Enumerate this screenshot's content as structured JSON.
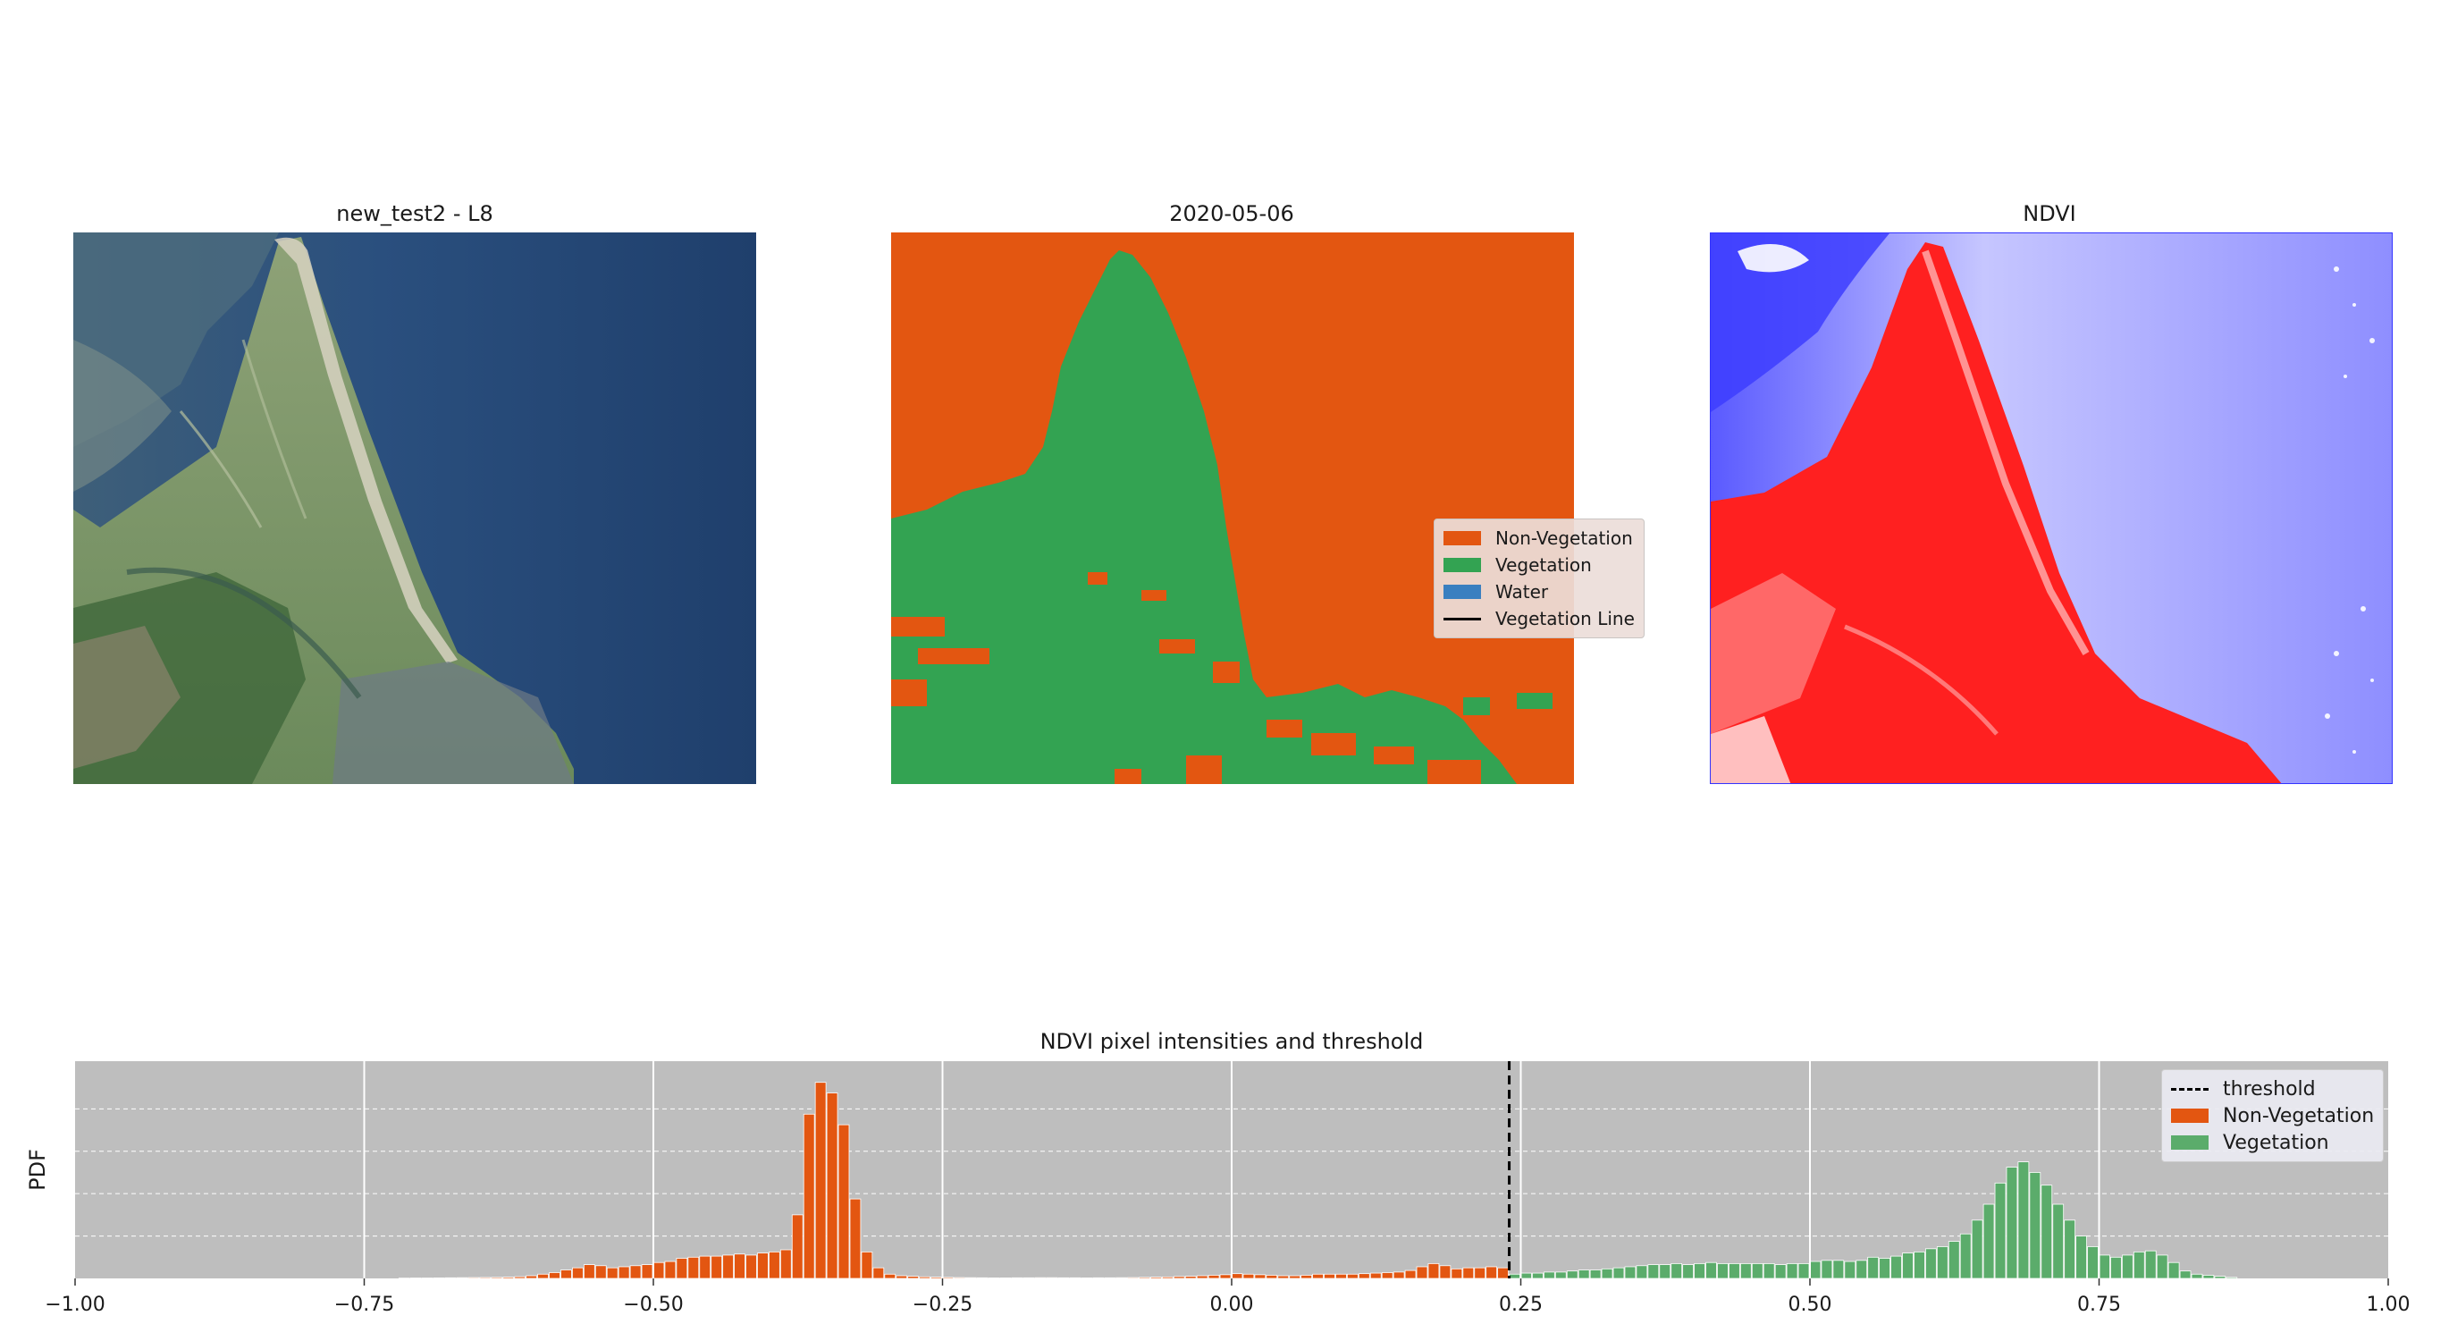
{
  "panels": {
    "rgb_title": "new_test2 - L8",
    "class_title": "2020-05-06",
    "ndvi_title": "NDVI"
  },
  "classification_legend": [
    {
      "label": "Non-Vegetation",
      "color": "#e35611"
    },
    {
      "label": "Vegetation",
      "color": "#33a352"
    },
    {
      "label": "Water",
      "color": "#3a7fc0"
    },
    {
      "label": "Vegetation Line",
      "color": "#000000"
    }
  ],
  "colors": {
    "non_vegetation": "#e35611",
    "vegetation": "#33a352",
    "sea": "#24487a",
    "ndvi_positive": "#ff0000",
    "ndvi_negative": "#3333ff",
    "hist_background": "#bebebe",
    "hist_vegetation": "#5bac6b"
  },
  "chart_data": {
    "type": "bar",
    "title": "NDVI pixel intensities and threshold",
    "xlabel": "",
    "ylabel": "PDF",
    "xlim": [
      -1.0,
      1.0
    ],
    "xticks": [
      "−1.00",
      "−0.75",
      "−0.50",
      "−0.25",
      "0.00",
      "0.25",
      "0.50",
      "0.75",
      "1.00"
    ],
    "threshold": 0.24,
    "grid": true,
    "legend_position": "top-right",
    "legend": [
      "threshold",
      "Non-Vegetation",
      "Vegetation"
    ],
    "bin_width": 0.01,
    "series": [
      {
        "name": "Non-Vegetation",
        "x": [
          -0.72,
          -0.71,
          -0.7,
          -0.69,
          -0.68,
          -0.67,
          -0.66,
          -0.65,
          -0.64,
          -0.63,
          -0.62,
          -0.61,
          -0.6,
          -0.59,
          -0.58,
          -0.57,
          -0.56,
          -0.55,
          -0.54,
          -0.53,
          -0.52,
          -0.51,
          -0.5,
          -0.49,
          -0.48,
          -0.47,
          -0.46,
          -0.45,
          -0.44,
          -0.43,
          -0.42,
          -0.41,
          -0.4,
          -0.39,
          -0.38,
          -0.37,
          -0.36,
          -0.35,
          -0.34,
          -0.33,
          -0.32,
          -0.31,
          -0.3,
          -0.29,
          -0.28,
          -0.27,
          -0.26,
          -0.25,
          -0.24,
          -0.23,
          -0.22,
          -0.21,
          -0.2,
          -0.19,
          -0.18,
          -0.17,
          -0.16,
          -0.15,
          -0.14,
          -0.13,
          -0.12,
          -0.11,
          -0.1,
          -0.09,
          -0.08,
          -0.07,
          -0.06,
          -0.05,
          -0.04,
          -0.03,
          -0.02,
          -0.01,
          0.0,
          0.01,
          0.02,
          0.03,
          0.04,
          0.05,
          0.06,
          0.07,
          0.08,
          0.09,
          0.1,
          0.11,
          0.12,
          0.13,
          0.14,
          0.15,
          0.16,
          0.17,
          0.18,
          0.19,
          0.2,
          0.21,
          0.22,
          0.23
        ],
        "values": [
          0.003,
          0.004,
          0.004,
          0.005,
          0.006,
          0.007,
          0.008,
          0.009,
          0.01,
          0.012,
          0.016,
          0.025,
          0.04,
          0.055,
          0.08,
          0.1,
          0.13,
          0.12,
          0.1,
          0.11,
          0.12,
          0.13,
          0.15,
          0.16,
          0.19,
          0.2,
          0.21,
          0.21,
          0.22,
          0.23,
          0.22,
          0.24,
          0.25,
          0.27,
          0.6,
          1.55,
          1.85,
          1.75,
          1.45,
          0.75,
          0.25,
          0.1,
          0.04,
          0.025,
          0.02,
          0.015,
          0.012,
          0.01,
          0.008,
          0.007,
          0.006,
          0.005,
          0.005,
          0.006,
          0.006,
          0.007,
          0.007,
          0.006,
          0.006,
          0.005,
          0.006,
          0.006,
          0.007,
          0.008,
          0.01,
          0.012,
          0.014,
          0.018,
          0.02,
          0.025,
          0.03,
          0.035,
          0.045,
          0.04,
          0.035,
          0.03,
          0.025,
          0.025,
          0.03,
          0.04,
          0.04,
          0.04,
          0.04,
          0.045,
          0.05,
          0.055,
          0.06,
          0.075,
          0.11,
          0.14,
          0.12,
          0.09,
          0.1,
          0.1,
          0.11,
          0.1
        ]
      },
      {
        "name": "Vegetation",
        "x": [
          0.24,
          0.25,
          0.26,
          0.27,
          0.28,
          0.29,
          0.3,
          0.31,
          0.32,
          0.33,
          0.34,
          0.35,
          0.36,
          0.37,
          0.38,
          0.39,
          0.4,
          0.41,
          0.42,
          0.43,
          0.44,
          0.45,
          0.46,
          0.47,
          0.48,
          0.49,
          0.5,
          0.51,
          0.52,
          0.53,
          0.54,
          0.55,
          0.56,
          0.57,
          0.58,
          0.59,
          0.6,
          0.61,
          0.62,
          0.63,
          0.64,
          0.65,
          0.66,
          0.67,
          0.68,
          0.69,
          0.7,
          0.71,
          0.72,
          0.73,
          0.74,
          0.75,
          0.76,
          0.77,
          0.78,
          0.79,
          0.8,
          0.81,
          0.82,
          0.83,
          0.84,
          0.85,
          0.86
        ],
        "values": [
          0.04,
          0.05,
          0.05,
          0.06,
          0.06,
          0.07,
          0.08,
          0.08,
          0.09,
          0.1,
          0.11,
          0.12,
          0.13,
          0.13,
          0.14,
          0.13,
          0.14,
          0.15,
          0.14,
          0.14,
          0.14,
          0.14,
          0.14,
          0.13,
          0.14,
          0.14,
          0.16,
          0.17,
          0.17,
          0.16,
          0.17,
          0.2,
          0.19,
          0.21,
          0.24,
          0.25,
          0.28,
          0.3,
          0.35,
          0.42,
          0.55,
          0.7,
          0.9,
          1.05,
          1.1,
          1.0,
          0.88,
          0.7,
          0.55,
          0.4,
          0.3,
          0.22,
          0.2,
          0.22,
          0.25,
          0.26,
          0.22,
          0.15,
          0.07,
          0.04,
          0.03,
          0.02,
          0.01
        ]
      }
    ]
  }
}
